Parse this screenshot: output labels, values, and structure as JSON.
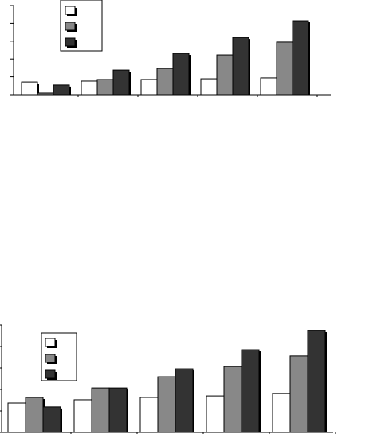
{
  "chart_data": [
    {
      "type": "bar",
      "categories": [
        null,
        null,
        null,
        null,
        null
      ],
      "series": [
        {
          "color": "#ffffff",
          "values": [
            0.71,
            0.76,
            0.85,
            0.89,
            0.94
          ]
        },
        {
          "color": "#888888",
          "values": [
            0.09,
            0.85,
            1.47,
            2.23,
            2.95
          ]
        },
        {
          "color": "#333333",
          "values": [
            0.54,
            1.38,
            2.32,
            3.21,
            4.15
          ]
        }
      ],
      "ylim": [
        0,
        5
      ],
      "yticks": [
        0,
        1,
        2,
        3,
        4,
        5
      ],
      "legend": "top-left"
    },
    {
      "type": "bar",
      "categories": [
        null,
        null,
        null,
        null,
        null
      ],
      "series": [
        {
          "color": "#ffffff",
          "values": [
            1.37,
            1.52,
            1.63,
            1.7,
            1.81
          ]
        },
        {
          "color": "#888888",
          "values": [
            1.63,
            2.07,
            2.59,
            3.07,
            3.56
          ]
        },
        {
          "color": "#333333",
          "values": [
            1.19,
            2.07,
            2.96,
            3.85,
            4.74
          ]
        }
      ],
      "ylim": [
        0,
        5
      ],
      "yticks": [
        0,
        1,
        2,
        3,
        4,
        5
      ],
      "legend": "top-left"
    }
  ]
}
